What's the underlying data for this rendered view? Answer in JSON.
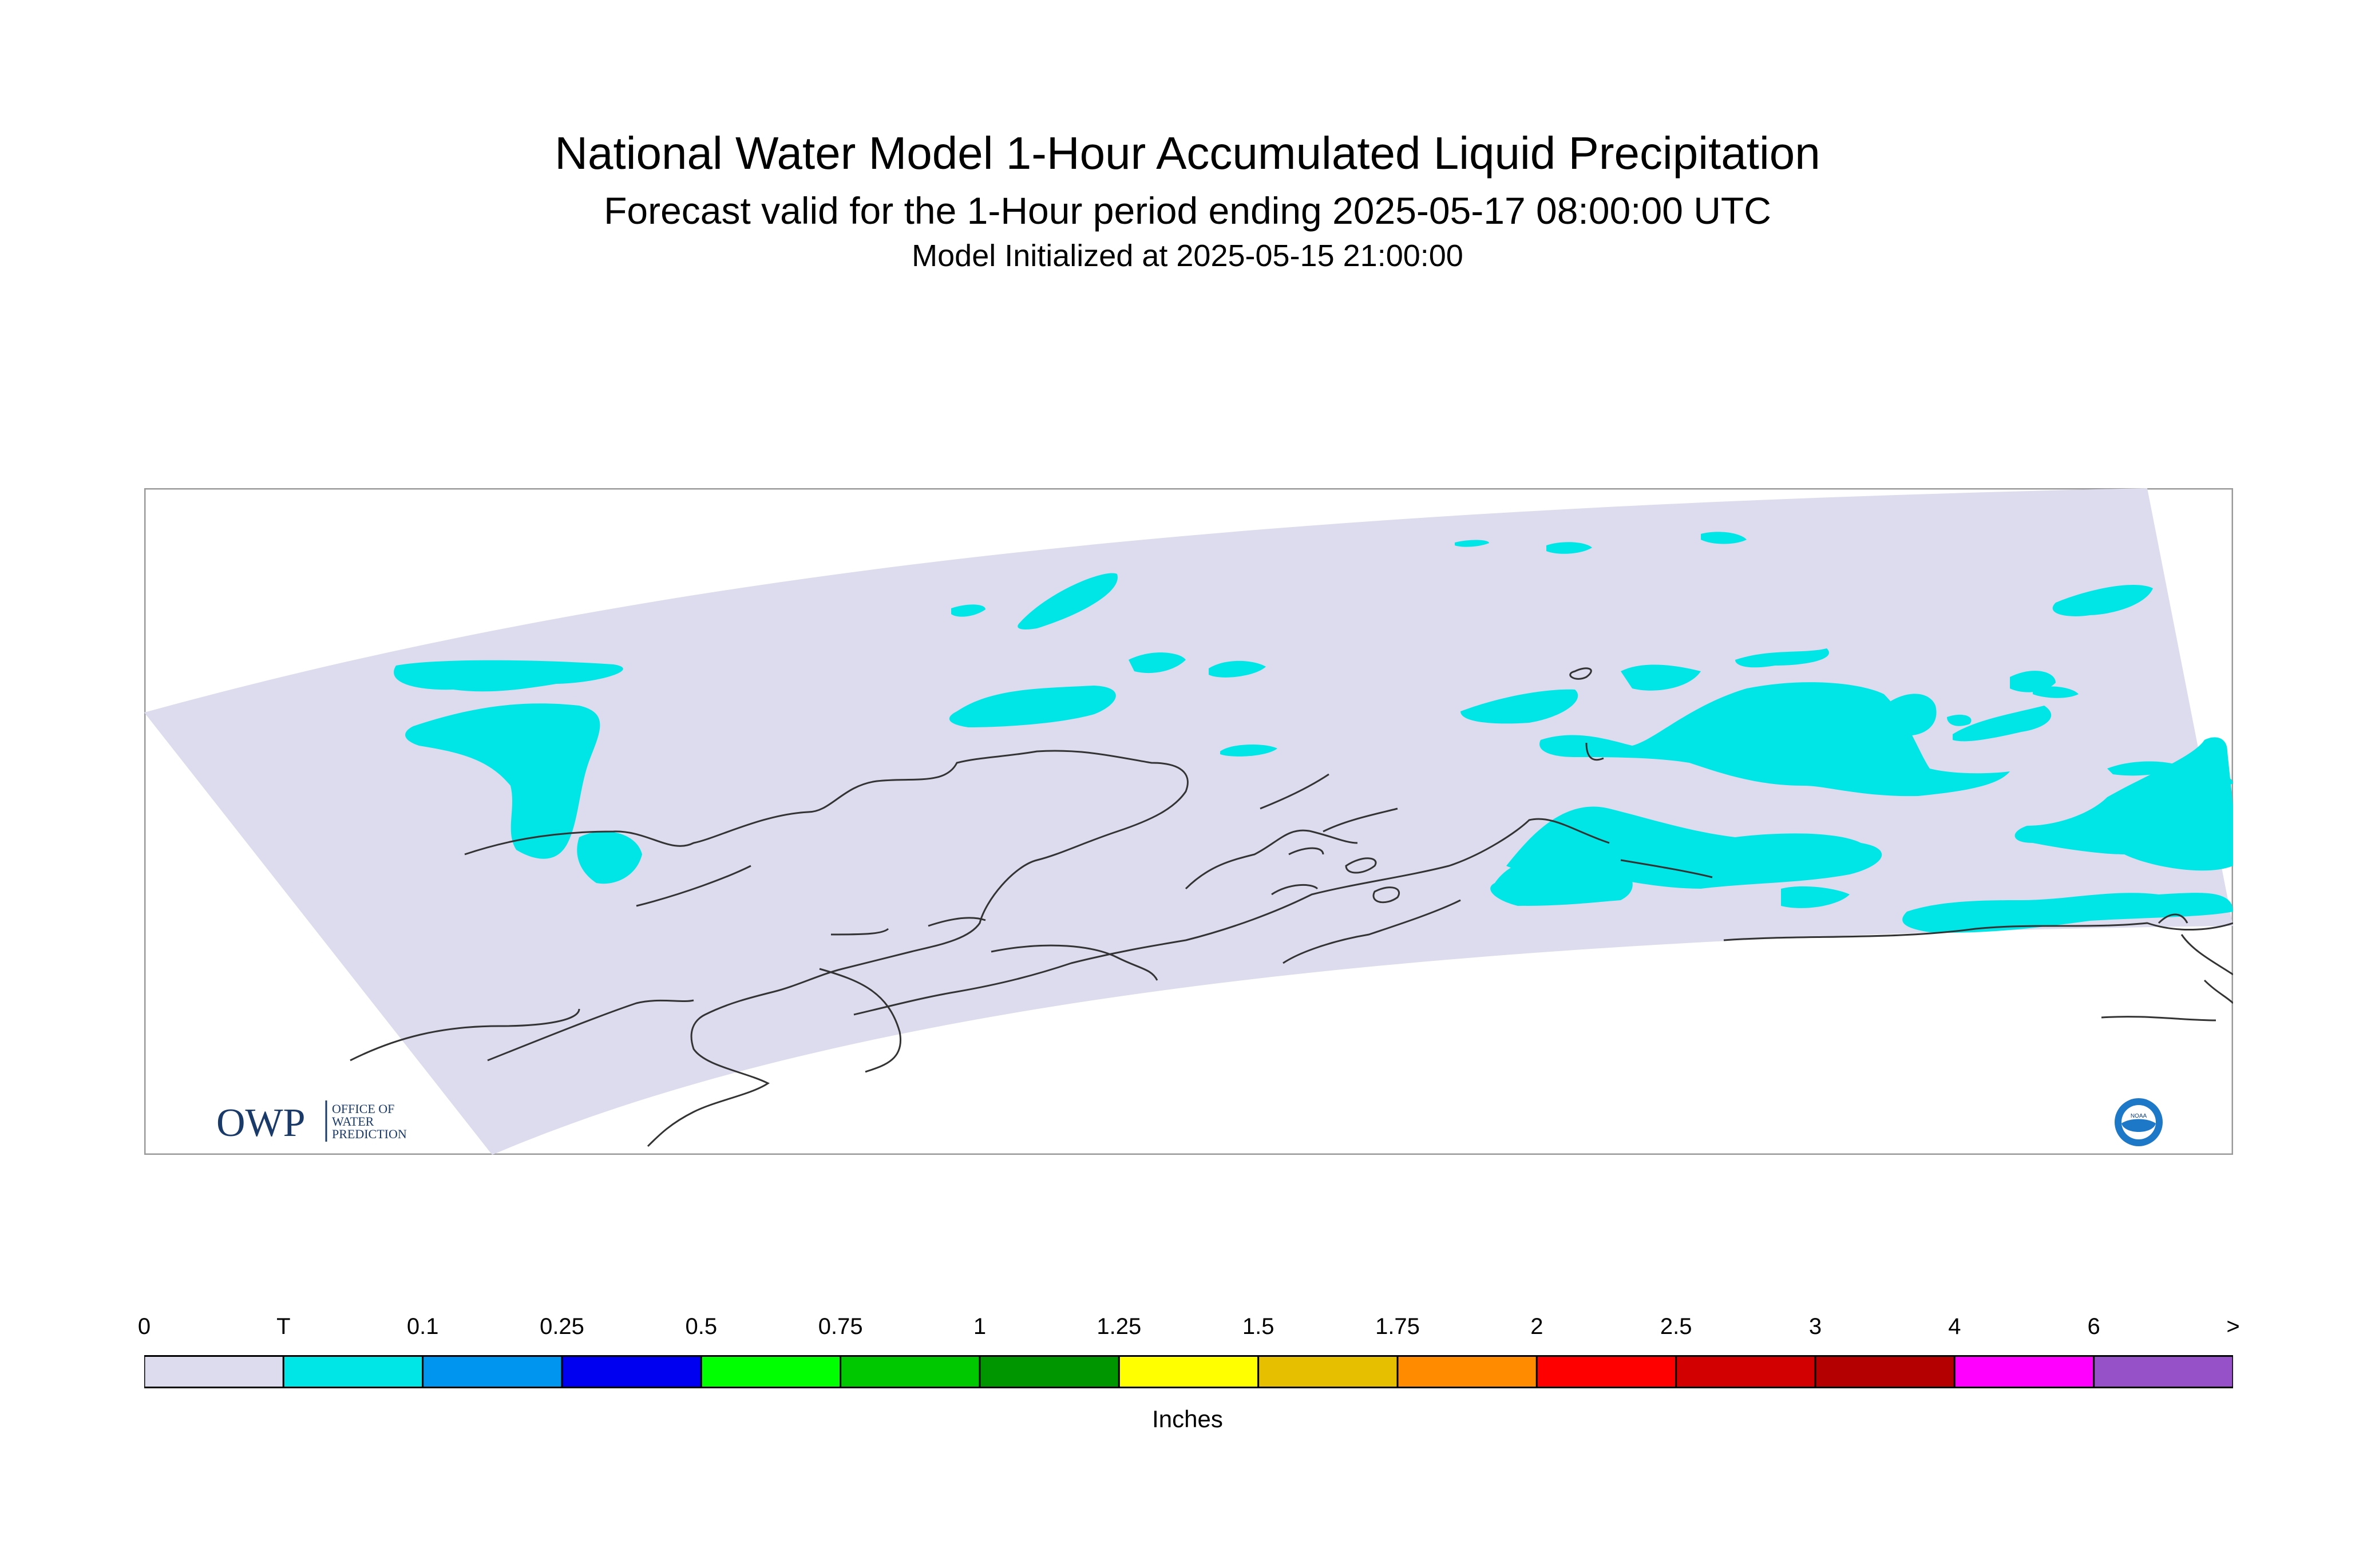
{
  "title": "National Water Model 1-Hour Accumulated Liquid Precipitation",
  "subtitle": "Forecast valid for the 1-Hour period ending 2025-05-17 08:00:00 UTC",
  "init_text": "Model Initialized at 2025-05-15 21:00:00",
  "logo_owp": {
    "mark": "OWP",
    "line1": "OFFICE OF",
    "line2": "WATER",
    "line3": "PREDICTION"
  },
  "logo_noaa": {
    "mark": "NOAA"
  },
  "colors": {
    "domain_fill": "#dcdcee",
    "precip_T": "#00e6e6",
    "coastline": "#333333"
  },
  "legend": {
    "units": "Inches",
    "ticks": [
      "0",
      "T",
      "0.1",
      "0.25",
      "0.5",
      "0.75",
      "1",
      "1.25",
      "1.5",
      "1.75",
      "2",
      "2.5",
      "3",
      "4",
      "6",
      ">"
    ],
    "colors": [
      "#dcdcee",
      "#00e6e6",
      "#0096f0",
      "#0000f0",
      "#00ff00",
      "#00c800",
      "#009600",
      "#ffff00",
      "#e6c000",
      "#ff8c00",
      "#ff0000",
      "#d20000",
      "#b40000",
      "#ff00ff",
      "#9650c8"
    ]
  }
}
